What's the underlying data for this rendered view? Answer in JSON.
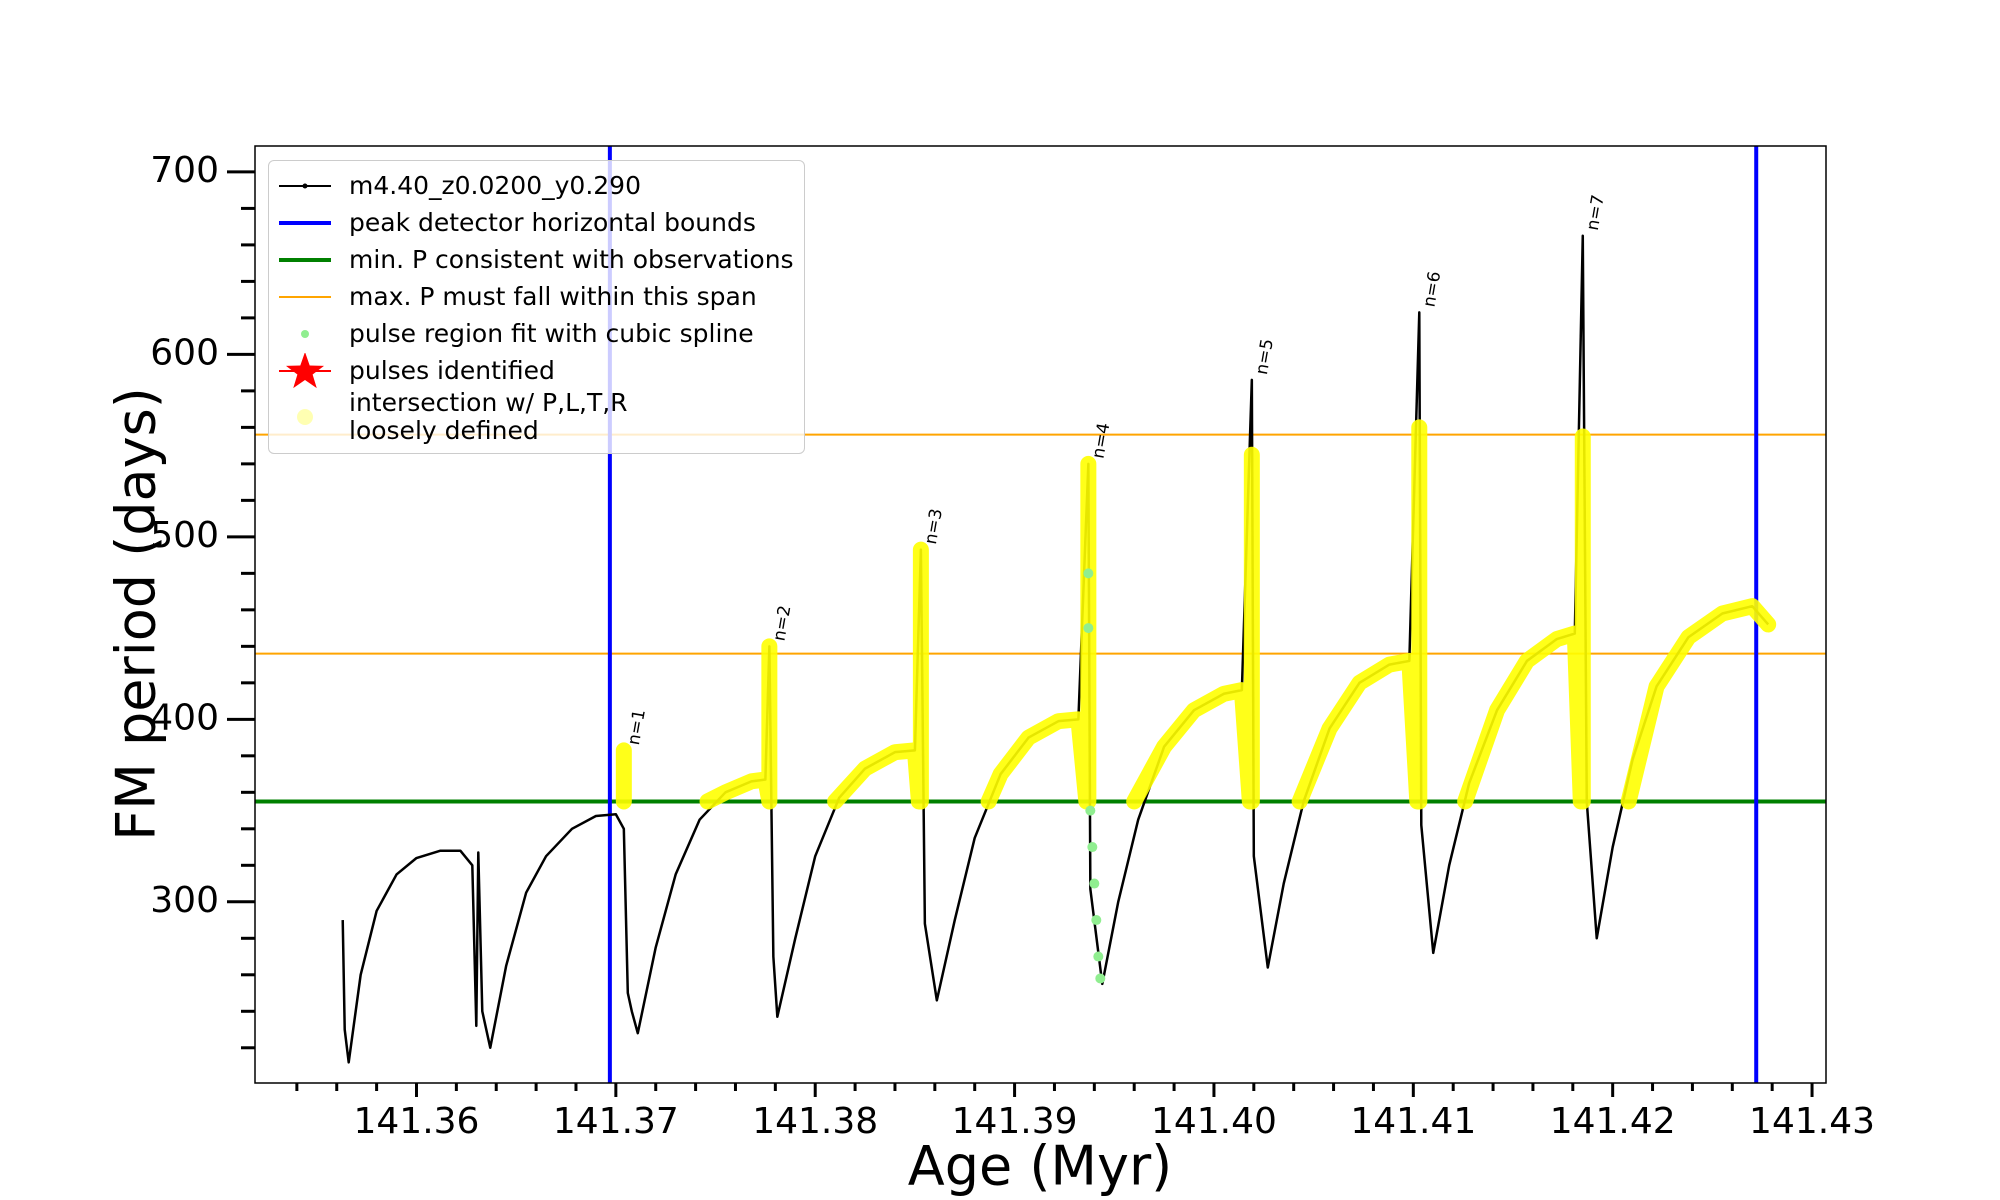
{
  "chart_data": {
    "type": "line",
    "xlabel": "Age (Myr)",
    "ylabel": "FM period (days)",
    "xlim": [
      141.3519,
      141.4307
    ],
    "ylim": [
      200.7,
      714.2
    ],
    "xticks": [
      141.36,
      141.37,
      141.38,
      141.39,
      {
        "value": 141.4,
        "label": "141.40"
      },
      141.41,
      141.42,
      141.43
    ],
    "yticks": [
      300,
      400,
      500,
      600,
      700
    ],
    "xminorticks": [
      141.354,
      141.356,
      141.358,
      141.362,
      141.364,
      141.366,
      141.368,
      141.372,
      141.374,
      141.376,
      141.378,
      141.382,
      141.384,
      141.386,
      141.388,
      141.392,
      141.394,
      141.396,
      141.398,
      141.402,
      141.404,
      141.406,
      141.408,
      141.412,
      141.414,
      141.416,
      141.418,
      141.422,
      141.424,
      141.426,
      141.428
    ],
    "yminorticks": [
      220,
      240,
      260,
      280,
      320,
      340,
      360,
      380,
      420,
      440,
      460,
      480,
      520,
      540,
      560,
      580,
      620,
      640,
      660,
      680
    ],
    "legend": "upper left",
    "series": [
      {
        "name": "m4.40_z0.0200_y0.290",
        "color": "#000000",
        "kind": "line",
        "x": [
          141.3563,
          141.3564,
          141.3566,
          141.3572,
          141.358,
          141.359,
          141.36,
          141.3612,
          141.3622,
          141.3628,
          141.363,
          141.3631,
          141.3633,
          141.3637,
          141.3645,
          141.3655,
          141.3665,
          141.3678,
          141.369,
          141.37,
          141.3704,
          141.3706,
          141.3708,
          141.3711,
          141.372,
          141.373,
          141.3742,
          141.3755,
          141.3768,
          141.3775,
          141.3777,
          141.3779,
          141.3781,
          141.379,
          141.38,
          141.3812,
          141.3825,
          141.384,
          141.385,
          141.3853,
          141.3855,
          141.3861,
          141.387,
          141.388,
          141.3893,
          141.3907,
          141.3922,
          141.3932,
          141.3937,
          141.3938,
          141.3944,
          141.3952,
          141.3962,
          141.3975,
          141.399,
          141.4005,
          141.4014,
          141.4019,
          141.402,
          141.4027,
          141.4035,
          141.4045,
          141.4058,
          141.4073,
          141.4088,
          141.4098,
          141.4103,
          141.4104,
          141.411,
          141.4118,
          141.4128,
          141.4142,
          141.4157,
          141.4172,
          141.4181,
          141.4185,
          141.4187,
          141.4192,
          141.42,
          141.421,
          141.4222,
          141.4238,
          141.4255,
          141.427,
          141.4278
        ],
        "values": [
          290,
          230,
          212,
          260,
          295,
          315,
          324,
          328,
          328,
          320,
          232,
          327,
          240,
          220,
          265,
          305,
          325,
          340,
          347,
          348,
          340,
          250,
          240,
          228,
          275,
          315,
          345,
          360,
          366,
          367,
          440,
          270,
          237,
          280,
          325,
          357,
          373,
          382,
          383,
          493,
          288,
          246,
          290,
          335,
          370,
          390,
          399,
          400,
          540,
          307,
          255,
          300,
          345,
          385,
          405,
          414,
          416,
          586,
          325,
          264,
          310,
          355,
          395,
          420,
          430,
          432,
          623,
          342,
          272,
          320,
          365,
          405,
          432,
          444,
          447,
          665,
          355,
          280,
          330,
          378,
          418,
          445,
          458,
          462,
          452
        ]
      },
      {
        "name": "pulse region fit with cubic spline",
        "color": "#90ee90",
        "kind": "scatter",
        "x": [
          141.3937,
          141.3937,
          141.3938,
          141.3939,
          141.394,
          141.3941,
          141.3942,
          141.3943
        ],
        "values": [
          480,
          450,
          350,
          330,
          310,
          290,
          270,
          258
        ]
      },
      {
        "name": "pulses identified",
        "color": "#ff0000",
        "kind": "star",
        "x": [],
        "values": []
      },
      {
        "name": "intersection w/ P,L,T,R\nloosely defined",
        "color": "#ffff00",
        "kind": "band",
        "x": [
          141.3704,
          141.3704,
          null,
          141.3746,
          141.3755,
          141.3768,
          141.3775,
          141.3777,
          null,
          141.3777,
          141.3777,
          null,
          141.381,
          141.3825,
          141.384,
          141.385,
          141.3852,
          null,
          141.3853,
          141.3853,
          null,
          141.3887,
          141.3893,
          141.3907,
          141.3922,
          141.3932,
          141.3936,
          null,
          141.3937,
          141.3937,
          null,
          141.396,
          141.3975,
          141.399,
          141.4005,
          141.4014,
          141.4018,
          null,
          141.4019,
          141.4019,
          null,
          141.4043,
          141.4058,
          141.4073,
          141.4088,
          141.4098,
          141.4102,
          null,
          141.4103,
          141.4103,
          null,
          141.4126,
          141.4142,
          141.4157,
          141.4172,
          141.4181,
          141.4184,
          null,
          141.4185,
          141.4185,
          null,
          141.4208,
          141.4222,
          141.4238,
          141.4255,
          141.427,
          141.4278
        ],
        "values": [
          355,
          383,
          null,
          355,
          360,
          366,
          367,
          355,
          null,
          355,
          440,
          null,
          355,
          373,
          382,
          383,
          355,
          null,
          355,
          493,
          null,
          355,
          370,
          390,
          399,
          400,
          355,
          null,
          355,
          540,
          null,
          355,
          385,
          405,
          414,
          416,
          355,
          null,
          355,
          545,
          null,
          355,
          395,
          420,
          430,
          432,
          355,
          null,
          355,
          560,
          null,
          355,
          405,
          432,
          444,
          447,
          355,
          null,
          355,
          555,
          null,
          355,
          418,
          445,
          458,
          462,
          452
        ]
      }
    ],
    "vlines": {
      "name": "peak detector horizontal bounds",
      "color": "#0000ff",
      "values": [
        141.3697,
        141.4272
      ]
    },
    "hlines": [
      {
        "name": "min. P consistent with observations",
        "color": "#008000",
        "values": [
          355
        ]
      },
      {
        "name": "max. P must fall within this span",
        "color": "#ffa500",
        "values": [
          556,
          436
        ]
      }
    ],
    "annotations": [
      {
        "text": "n=1",
        "x": 141.3706,
        "y": 386
      },
      {
        "text": "n=2",
        "x": 141.3779,
        "y": 443
      },
      {
        "text": "n=3",
        "x": 141.3855,
        "y": 496
      },
      {
        "text": "n=4",
        "x": 141.3939,
        "y": 543
      },
      {
        "text": "n=5",
        "x": 141.4021,
        "y": 589
      },
      {
        "text": "n=6",
        "x": 141.4105,
        "y": 626
      },
      {
        "text": "n=7",
        "x": 141.4187,
        "y": 668
      }
    ]
  }
}
